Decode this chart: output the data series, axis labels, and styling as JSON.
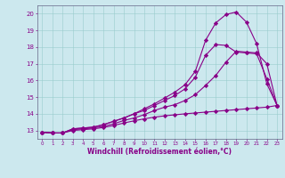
{
  "xlabel": "Windchill (Refroidissement éolien,°C)",
  "bg_color": "#cce8ee",
  "line_color": "#880088",
  "grid_color": "#99cccc",
  "xlim": [
    -0.5,
    23.5
  ],
  "ylim": [
    12.5,
    20.5
  ],
  "yticks": [
    13,
    14,
    15,
    16,
    17,
    18,
    19,
    20
  ],
  "xticks": [
    0,
    1,
    2,
    3,
    4,
    5,
    6,
    7,
    8,
    9,
    10,
    11,
    12,
    13,
    14,
    15,
    16,
    17,
    18,
    19,
    20,
    21,
    22,
    23
  ],
  "line_top_x": [
    0,
    1,
    2,
    3,
    4,
    5,
    6,
    7,
    8,
    9,
    10,
    11,
    12,
    13,
    14,
    15,
    16,
    17,
    18,
    19,
    20,
    21,
    22,
    23
  ],
  "line_top_y": [
    12.9,
    12.85,
    12.85,
    13.1,
    13.15,
    13.2,
    13.35,
    13.55,
    13.75,
    14.0,
    14.3,
    14.6,
    14.95,
    15.3,
    15.75,
    16.55,
    18.4,
    19.45,
    19.95,
    20.1,
    19.5,
    18.2,
    15.8,
    14.5
  ],
  "line_mid1_x": [
    0,
    1,
    2,
    3,
    4,
    5,
    6,
    7,
    8,
    9,
    10,
    11,
    12,
    13,
    14,
    15,
    16,
    17,
    18,
    19,
    20,
    21,
    22,
    23
  ],
  "line_mid1_y": [
    12.9,
    12.85,
    12.85,
    13.1,
    13.15,
    13.2,
    13.35,
    13.55,
    13.75,
    14.0,
    14.2,
    14.5,
    14.8,
    15.1,
    15.5,
    16.2,
    17.5,
    18.15,
    18.1,
    17.7,
    17.65,
    17.6,
    16.1,
    14.5
  ],
  "line_mid2_x": [
    0,
    1,
    2,
    3,
    4,
    5,
    6,
    7,
    8,
    9,
    10,
    11,
    12,
    13,
    14,
    15,
    16,
    17,
    18,
    19,
    20,
    21,
    22,
    23
  ],
  "line_mid2_y": [
    12.9,
    12.85,
    12.85,
    13.05,
    13.1,
    13.15,
    13.25,
    13.4,
    13.6,
    13.75,
    13.95,
    14.2,
    14.4,
    14.55,
    14.8,
    15.15,
    15.7,
    16.3,
    17.1,
    17.75,
    17.7,
    17.65,
    17.0,
    14.5
  ],
  "line_flat_x": [
    0,
    1,
    2,
    3,
    4,
    5,
    6,
    7,
    8,
    9,
    10,
    11,
    12,
    13,
    14,
    15,
    16,
    17,
    18,
    19,
    20,
    21,
    22,
    23
  ],
  "line_flat_y": [
    12.9,
    12.85,
    12.85,
    13.0,
    13.05,
    13.1,
    13.18,
    13.3,
    13.45,
    13.58,
    13.7,
    13.8,
    13.88,
    13.94,
    14.0,
    14.05,
    14.1,
    14.15,
    14.2,
    14.25,
    14.3,
    14.35,
    14.4,
    14.5
  ]
}
